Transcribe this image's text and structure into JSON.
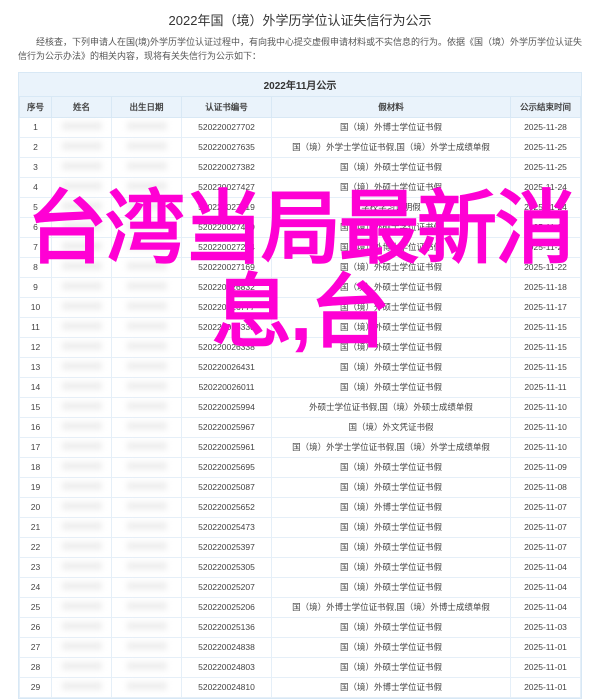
{
  "title": "2022年国（境）外学历学位认证失信行为公示",
  "intro": "经核查，下列申请人在国(境)外学历学位认证过程中，有向我中心提交虚假申请材料或不实信息的行为。依据《国（境）外学历学位认证失信行为公示办法》的相关内容，现将有关失信行为公示如下：",
  "sub_head": "2022年11月公示",
  "columns": {
    "idx": "序号",
    "name": "姓名",
    "dob": "出生日期",
    "cert": "认证书编号",
    "material": "假材料",
    "end": "公示结束时间"
  },
  "rows": [
    {
      "idx": "1",
      "cert": "520220027702",
      "mat": "国（境）外博士学位证书假",
      "end": "2025-11-28"
    },
    {
      "idx": "2",
      "cert": "520220027635",
      "mat": "国（境）外学士学位证书假,国（境）外学士成绩单假",
      "end": "2025-11-25"
    },
    {
      "idx": "3",
      "cert": "520220027382",
      "mat": "国（境）外硕士学位证书假",
      "end": "2025-11-25"
    },
    {
      "idx": "4",
      "cert": "520220027427",
      "mat": "国（境）外硕士学位证书假",
      "end": "2025-11-24"
    },
    {
      "idx": "5",
      "cert": "520220027519",
      "mat": "学校学习证明假",
      "end": "2025-11-24"
    },
    {
      "idx": "6",
      "cert": "520220027429",
      "mat": "国（境）外硕士学位证书假",
      "end": "2025-11-24"
    },
    {
      "idx": "7",
      "cert": "520220027294",
      "mat": "国（境）外博士学位证书假",
      "end": "2025-11-23"
    },
    {
      "idx": "8",
      "cert": "520220027169",
      "mat": "国（境）外硕士学位证书假",
      "end": "2025-11-22"
    },
    {
      "idx": "9",
      "cert": "520220026832",
      "mat": "国（境）外硕士学位证书假",
      "end": "2025-11-18"
    },
    {
      "idx": "10",
      "cert": "520220026777",
      "mat": "国（境）外硕士学位证书假",
      "end": "2025-11-17"
    },
    {
      "idx": "11",
      "cert": "520220026338",
      "mat": "国（境）外硕士学位证书假",
      "end": "2025-11-15"
    },
    {
      "idx": "12",
      "cert": "520220026338",
      "mat": "国（境）外硕士学位证书假",
      "end": "2025-11-15"
    },
    {
      "idx": "13",
      "cert": "520220026431",
      "mat": "国（境）外硕士学位证书假",
      "end": "2025-11-15"
    },
    {
      "idx": "14",
      "cert": "520220026011",
      "mat": "国（境）外硕士学位证书假",
      "end": "2025-11-11"
    },
    {
      "idx": "15",
      "cert": "520220025994",
      "mat": "外硕士学位证书假,国（境）外硕士成绩单假",
      "end": "2025-11-10"
    },
    {
      "idx": "16",
      "cert": "520220025967",
      "mat": "国（境）外文凭证书假",
      "end": "2025-11-10"
    },
    {
      "idx": "17",
      "cert": "520220025961",
      "mat": "国（境）外学士学位证书假,国（境）外学士成绩单假",
      "end": "2025-11-10"
    },
    {
      "idx": "18",
      "cert": "520220025695",
      "mat": "国（境）外硕士学位证书假",
      "end": "2025-11-09"
    },
    {
      "idx": "19",
      "cert": "520220025087",
      "mat": "国（境）外硕士学位证书假",
      "end": "2025-11-08"
    },
    {
      "idx": "20",
      "cert": "520220025652",
      "mat": "国（境）外博士学位证书假",
      "end": "2025-11-07"
    },
    {
      "idx": "21",
      "cert": "520220025473",
      "mat": "国（境）外硕士学位证书假",
      "end": "2025-11-07"
    },
    {
      "idx": "22",
      "cert": "520220025397",
      "mat": "国（境）外硕士学位证书假",
      "end": "2025-11-07"
    },
    {
      "idx": "23",
      "cert": "520220025305",
      "mat": "国（境）外硕士学位证书假",
      "end": "2025-11-04"
    },
    {
      "idx": "24",
      "cert": "520220025207",
      "mat": "国（境）外硕士学位证书假",
      "end": "2025-11-04"
    },
    {
      "idx": "25",
      "cert": "520220025206",
      "mat": "国（境）外博士学位证书假,国（境）外博士成绩单假",
      "end": "2025-11-04"
    },
    {
      "idx": "26",
      "cert": "520220025136",
      "mat": "国（境）外硕士学位证书假",
      "end": "2025-11-03"
    },
    {
      "idx": "27",
      "cert": "520220024838",
      "mat": "国（境）外硕士学位证书假",
      "end": "2025-11-01"
    },
    {
      "idx": "28",
      "cert": "520220024803",
      "mat": "国（境）外硕士学位证书假",
      "end": "2025-11-01"
    },
    {
      "idx": "29",
      "cert": "520220024810",
      "mat": "国（境）外博士学位证书假",
      "end": "2025-11-01"
    }
  ],
  "overlay": {
    "line1": "台湾当局最新消",
    "line2": "息,台"
  }
}
